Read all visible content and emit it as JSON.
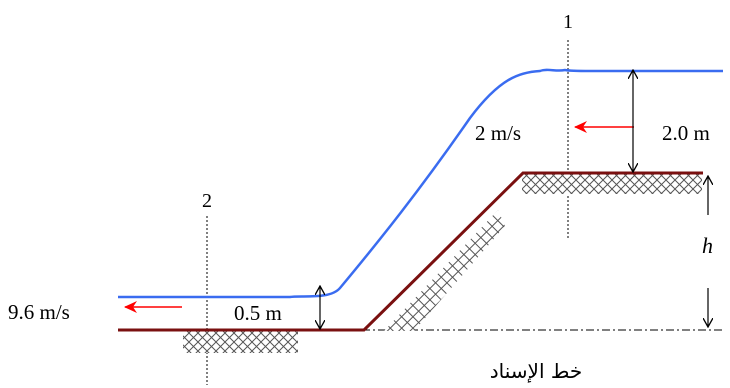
{
  "labels": {
    "section_1": "1",
    "section_2": "2",
    "velocity_upstream": "2 m/s",
    "depth_upstream": "2.0 m",
    "velocity_downstream": "9.6 m/s",
    "depth_downstream": "0.5 m",
    "step_height": "h",
    "datum": "خط الإسناد"
  },
  "colors": {
    "water_surface": "#3a6cf0",
    "channel_bed": "#7a1010",
    "flow_arrow": "#ff0000",
    "hatch": "#555555"
  }
}
